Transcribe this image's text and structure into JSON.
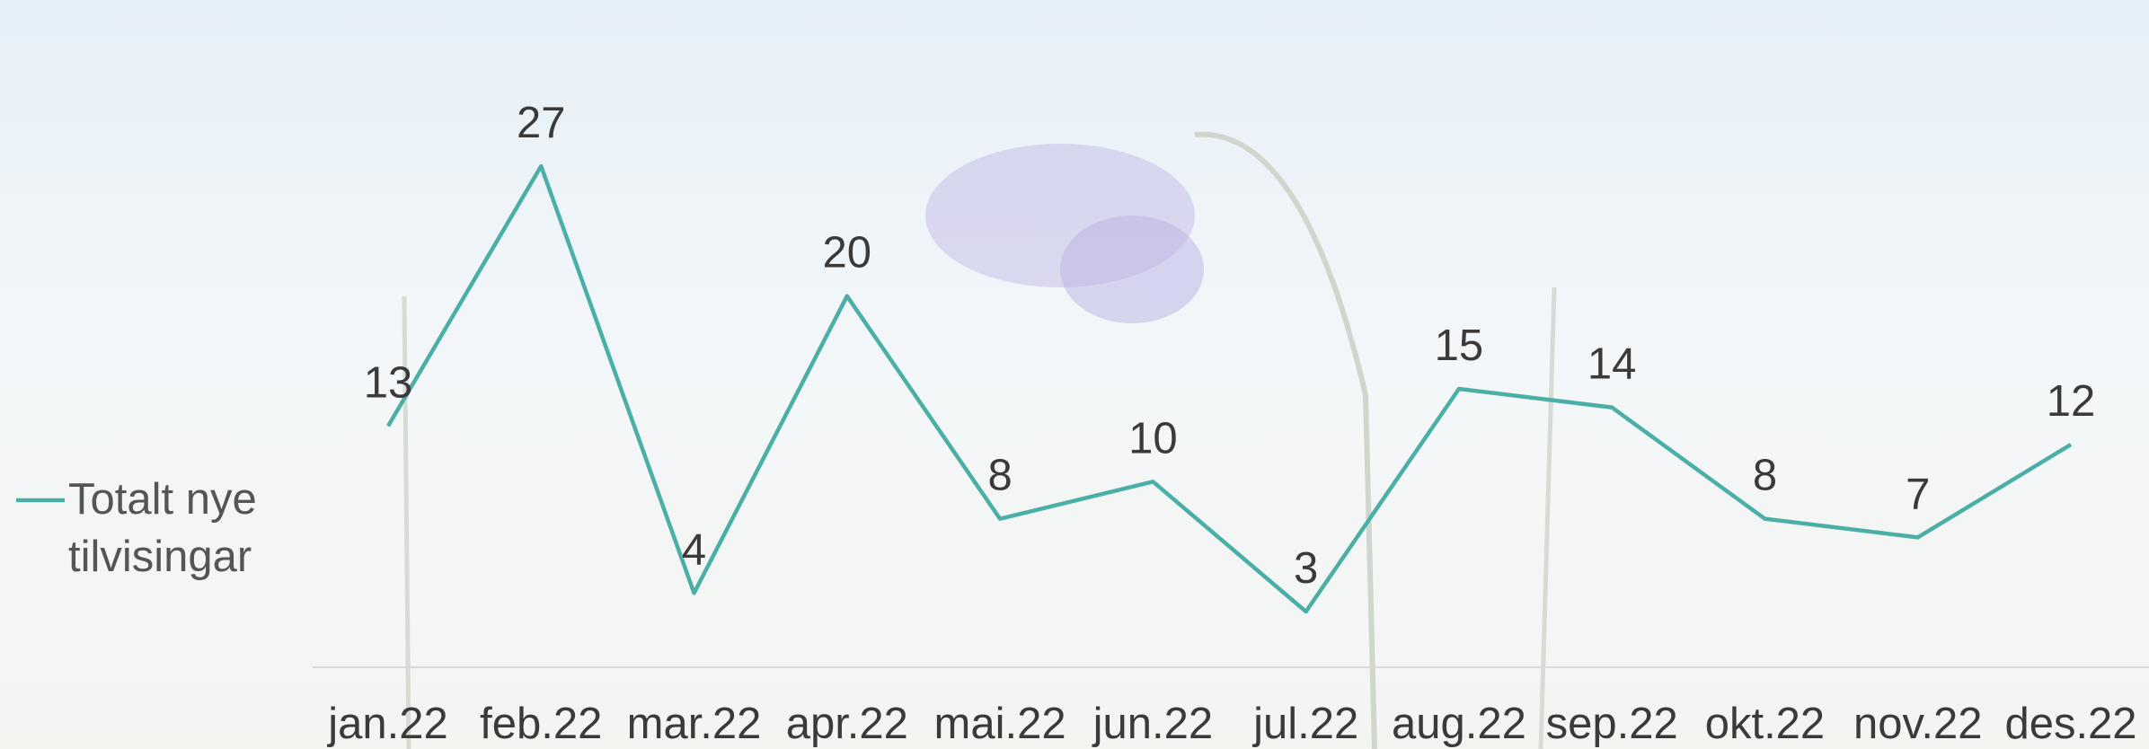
{
  "chart_data": {
    "type": "line",
    "categories": [
      "jan.22",
      "feb.22",
      "mar.22",
      "apr.22",
      "mai.22",
      "jun.22",
      "jul.22",
      "aug.22",
      "sep.22",
      "okt.22",
      "nov.22",
      "des.22"
    ],
    "series": [
      {
        "name": "Totalt nye tilvisingar",
        "color": "#4aafa6",
        "values": [
          13,
          27,
          4,
          20,
          8,
          10,
          3,
          15,
          14,
          8,
          7,
          12
        ]
      }
    ]
  }
}
